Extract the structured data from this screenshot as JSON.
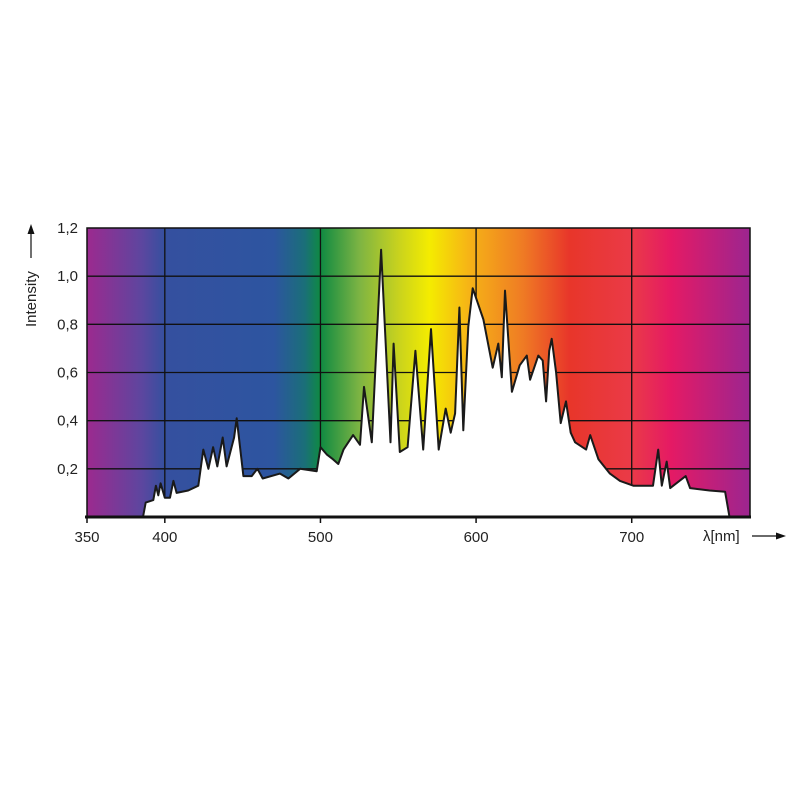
{
  "chart_data": {
    "type": "area",
    "title": "",
    "xlabel": "λ[nm]",
    "ylabel": "Intensity",
    "xlim": [
      350,
      776
    ],
    "ylim": [
      0,
      1.2
    ],
    "grid": true,
    "x_ticks": [
      350,
      400,
      500,
      600,
      700
    ],
    "x_tick_labels": [
      "350",
      "400",
      "500",
      "600",
      "700"
    ],
    "x_gridlines": [
      400,
      500,
      600,
      700
    ],
    "y_ticks": [
      0.2,
      0.4,
      0.6,
      0.8,
      1.0,
      1.2
    ],
    "y_tick_labels": [
      "0,2",
      "0,4",
      "0,6",
      "0,8",
      "1,0",
      "1,2"
    ],
    "background": "visible spectrum color gradient",
    "fill_color": "#ffffff",
    "line_color": "#1a1a1a",
    "spectrum_colors": [
      {
        "nm": 350,
        "color": "#9c2a8f"
      },
      {
        "nm": 385,
        "color": "#5d469f"
      },
      {
        "nm": 400,
        "color": "#35509f"
      },
      {
        "nm": 470,
        "color": "#2d55a0"
      },
      {
        "nm": 490,
        "color": "#1a6f78"
      },
      {
        "nm": 500,
        "color": "#0f8a42"
      },
      {
        "nm": 525,
        "color": "#7db443"
      },
      {
        "nm": 550,
        "color": "#c8d21e"
      },
      {
        "nm": 570,
        "color": "#f4ec00"
      },
      {
        "nm": 595,
        "color": "#f6b416"
      },
      {
        "nm": 630,
        "color": "#ef7b24"
      },
      {
        "nm": 660,
        "color": "#e8362a"
      },
      {
        "nm": 700,
        "color": "#ea3a48"
      },
      {
        "nm": 725,
        "color": "#e51a64"
      },
      {
        "nm": 776,
        "color": "#9c2590"
      }
    ],
    "series": [
      {
        "x": [
          386,
          387.7,
          392.6,
          394.3,
          395.8,
          397.3,
          400,
          403.3,
          405.5,
          407.6,
          415,
          421.5,
          424.7,
          428,
          431,
          433.7,
          437.2,
          439.7,
          444.5,
          446.2,
          450.5,
          455.8,
          459.5,
          462.9,
          474,
          479.4,
          486.9,
          497.6,
          500,
          504,
          508,
          511.5,
          514.8,
          521,
          525.4,
          528,
          533,
          539,
          545,
          547,
          551,
          556,
          561,
          566,
          571,
          576,
          580.5,
          583.7,
          586.5,
          589.3,
          591.8,
          595,
          597.8,
          604.7,
          610.7,
          614.3,
          616.5,
          618.6,
          623,
          628,
          632.6,
          634.7,
          640,
          642.8,
          645,
          647,
          648.6,
          651.4,
          654.4,
          657.8,
          660.8,
          663.6,
          670.7,
          673.3,
          678.6,
          686,
          692.5,
          701,
          713.7,
          717,
          719.3,
          722.5,
          724.7,
          734.7,
          737.5,
          750,
          760,
          762.8
        ],
        "y": [
          0,
          0.06,
          0.07,
          0.13,
          0.09,
          0.14,
          0.08,
          0.08,
          0.15,
          0.1,
          0.11,
          0.13,
          0.28,
          0.2,
          0.29,
          0.21,
          0.33,
          0.21,
          0.33,
          0.41,
          0.17,
          0.17,
          0.2,
          0.16,
          0.18,
          0.16,
          0.2,
          0.19,
          0.29,
          0.26,
          0.24,
          0.22,
          0.28,
          0.34,
          0.3,
          0.54,
          0.31,
          1.11,
          0.31,
          0.72,
          0.27,
          0.29,
          0.69,
          0.28,
          0.78,
          0.28,
          0.45,
          0.35,
          0.43,
          0.87,
          0.36,
          0.79,
          0.95,
          0.82,
          0.62,
          0.72,
          0.58,
          0.94,
          0.52,
          0.63,
          0.67,
          0.57,
          0.67,
          0.65,
          0.48,
          0.69,
          0.74,
          0.6,
          0.39,
          0.48,
          0.35,
          0.31,
          0.28,
          0.34,
          0.24,
          0.18,
          0.15,
          0.13,
          0.13,
          0.28,
          0.13,
          0.23,
          0.12,
          0.17,
          0.12,
          0.11,
          0.105,
          0
        ]
      }
    ]
  }
}
